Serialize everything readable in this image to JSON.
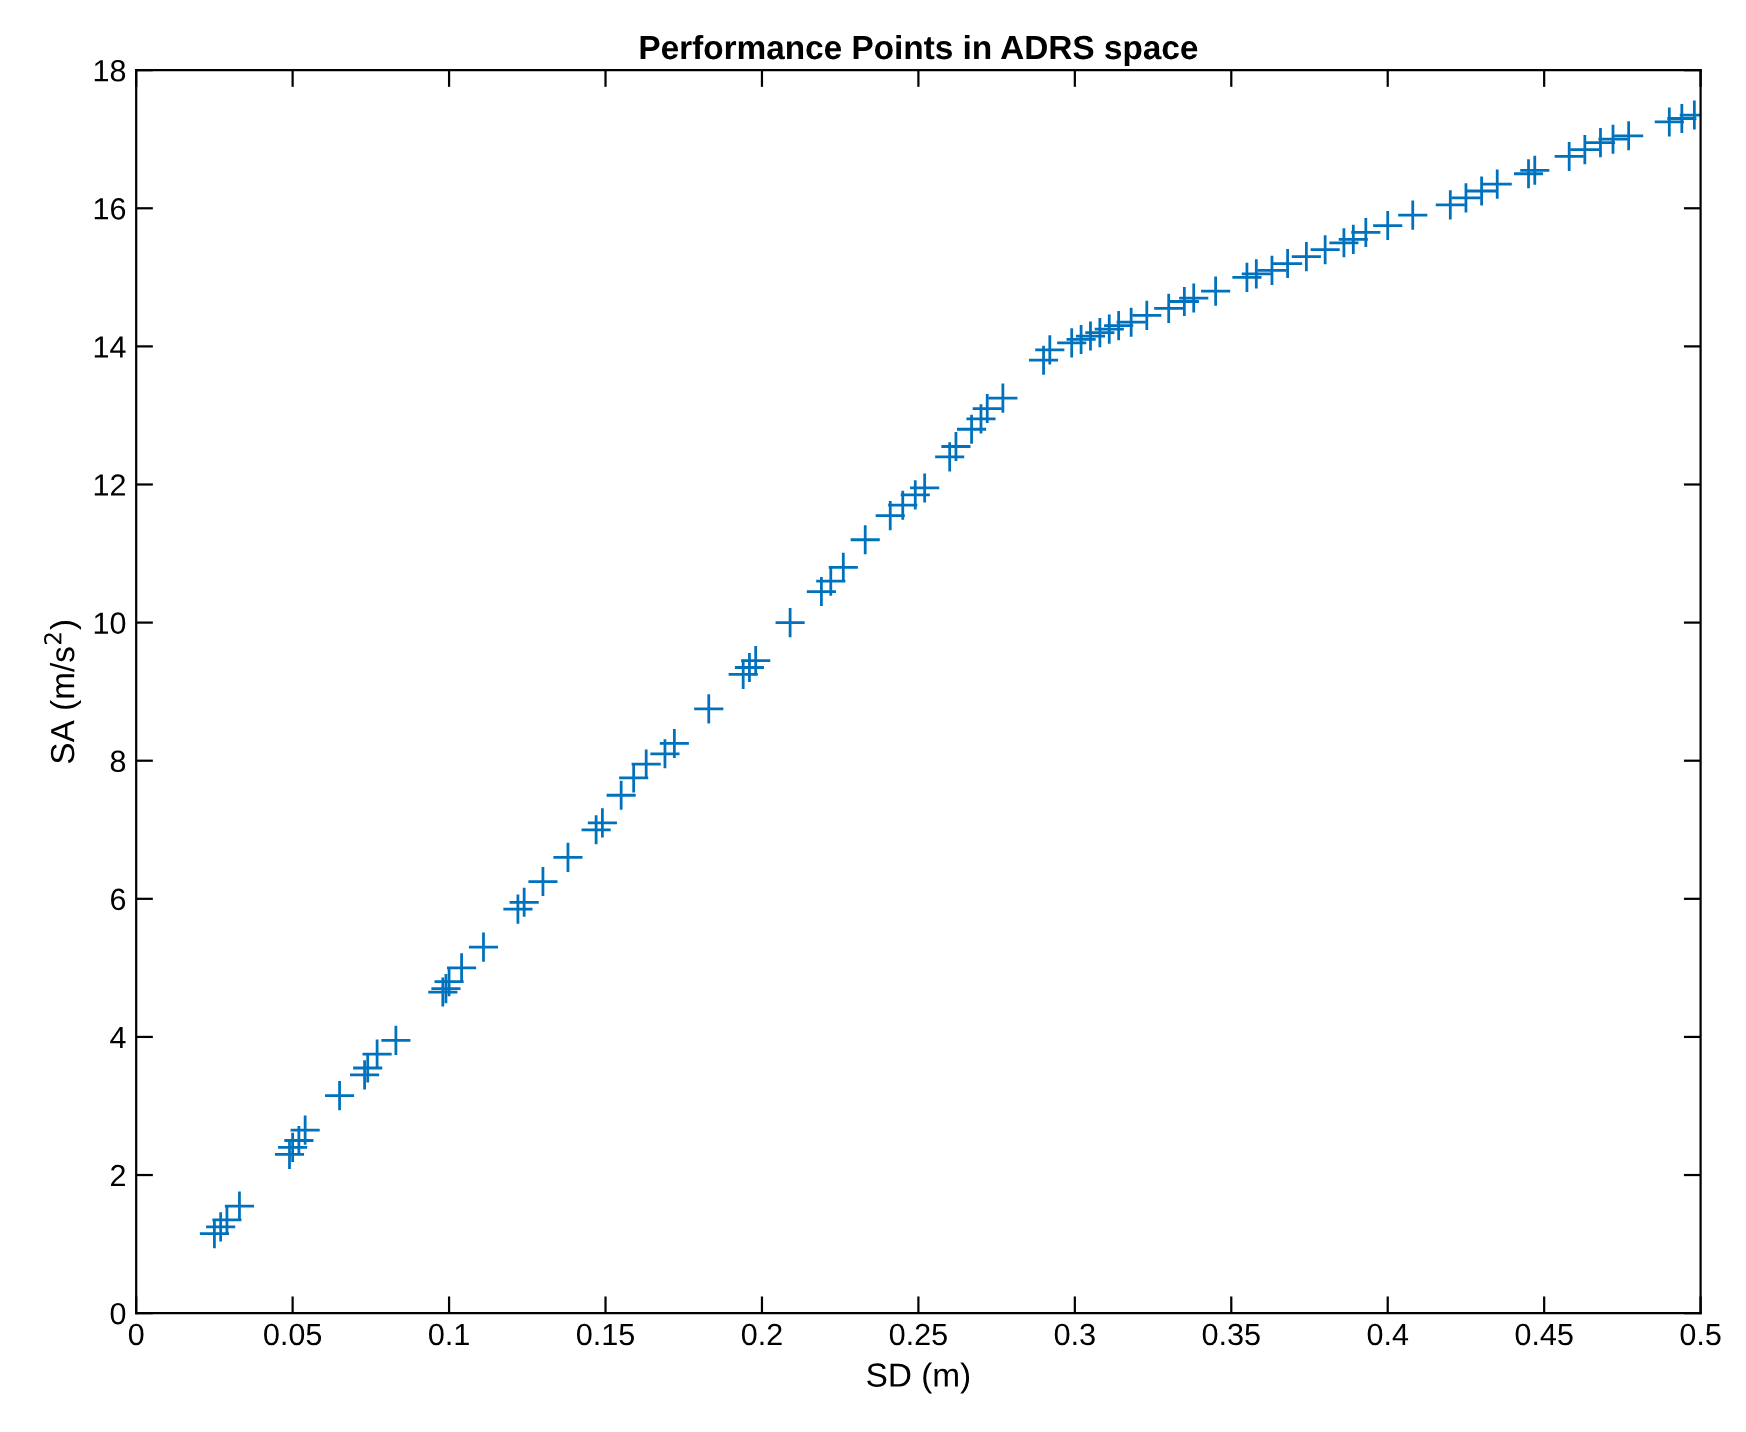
{
  "chart_data": {
    "type": "scatter",
    "title": "Performance Points in ADRS space",
    "xlabel": "SD (m)",
    "ylabel": "SA (m/s$^{2}$)",
    "xlim": [
      0,
      0.5
    ],
    "ylim": [
      0,
      18
    ],
    "xticks": [
      0,
      0.05,
      0.1,
      0.15,
      0.2,
      0.25,
      0.3,
      0.35,
      0.4,
      0.45,
      0.5
    ],
    "yticks": [
      0,
      2,
      4,
      6,
      8,
      10,
      12,
      14,
      16,
      18
    ],
    "grid": false,
    "marker": "cross",
    "series": [
      {
        "color": "#0072bd",
        "x": [
          0.025,
          0.027,
          0.029,
          0.033,
          0.049,
          0.05,
          0.052,
          0.054,
          0.065,
          0.073,
          0.074,
          0.077,
          0.083,
          0.098,
          0.099,
          0.1,
          0.104,
          0.111,
          0.122,
          0.124,
          0.13,
          0.138,
          0.147,
          0.149,
          0.155,
          0.159,
          0.163,
          0.169,
          0.172,
          0.183,
          0.194,
          0.196,
          0.198,
          0.209,
          0.219,
          0.222,
          0.226,
          0.233,
          0.241,
          0.245,
          0.249,
          0.252,
          0.26,
          0.262,
          0.267,
          0.27,
          0.272,
          0.277,
          0.29,
          0.292,
          0.299,
          0.302,
          0.305,
          0.308,
          0.311,
          0.314,
          0.318,
          0.323,
          0.33,
          0.335,
          0.338,
          0.345,
          0.355,
          0.358,
          0.363,
          0.368,
          0.374,
          0.38,
          0.386,
          0.389,
          0.393,
          0.4,
          0.408,
          0.42,
          0.425,
          0.43,
          0.435,
          0.445,
          0.447,
          0.458,
          0.463,
          0.468,
          0.472,
          0.477,
          0.49,
          0.494,
          0.498
        ],
        "values": [
          1.15,
          1.25,
          1.35,
          1.55,
          2.3,
          2.4,
          2.5,
          2.65,
          3.15,
          3.45,
          3.55,
          3.75,
          3.95,
          4.65,
          4.7,
          4.8,
          5.0,
          5.3,
          5.85,
          5.95,
          6.25,
          6.6,
          7.0,
          7.1,
          7.5,
          7.75,
          7.95,
          8.1,
          8.25,
          8.75,
          9.25,
          9.35,
          9.45,
          10.0,
          10.45,
          10.6,
          10.8,
          11.2,
          11.55,
          11.7,
          11.85,
          11.95,
          12.4,
          12.55,
          12.8,
          12.95,
          13.1,
          13.25,
          13.8,
          13.95,
          14.05,
          14.1,
          14.15,
          14.2,
          14.25,
          14.3,
          14.35,
          14.45,
          14.55,
          14.65,
          14.7,
          14.8,
          15.0,
          15.05,
          15.1,
          15.2,
          15.3,
          15.4,
          15.5,
          15.55,
          15.65,
          15.75,
          15.9,
          16.05,
          16.15,
          16.25,
          16.35,
          16.5,
          16.55,
          16.75,
          16.85,
          16.95,
          17.0,
          17.05,
          17.25,
          17.3,
          17.35
        ]
      }
    ]
  }
}
